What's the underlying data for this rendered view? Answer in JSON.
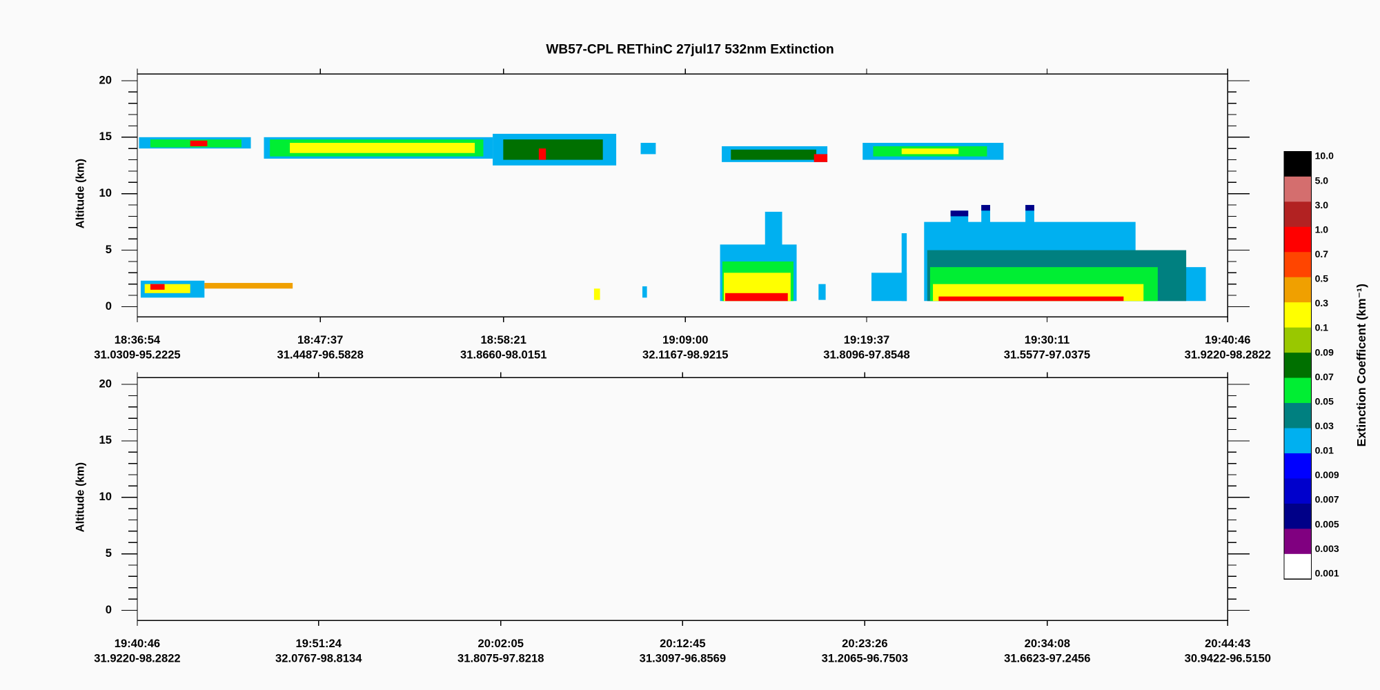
{
  "chart_data": {
    "type": "curtain",
    "title": "WB57-CPL  REThinC  27jul17  532nm Extinction",
    "ylabel": "Altitude (km)",
    "ylim": [
      -0.9,
      20.6
    ],
    "yticks": [
      0,
      5,
      10,
      15,
      20
    ],
    "yminorticks": [
      0,
      1,
      2,
      3,
      4,
      5,
      6,
      7,
      8,
      9,
      10,
      11,
      12,
      13,
      14,
      15,
      16,
      17,
      18,
      19,
      20
    ],
    "colorbar": {
      "title": "Extinction Coefficent (km⁻¹)",
      "levels": [
        {
          "value": 10,
          "label": "10.0"
        },
        {
          "value": 5,
          "label": "5.0"
        },
        {
          "value": 3,
          "label": "3.0"
        },
        {
          "value": 1,
          "label": "1.0"
        },
        0.7,
        0.5,
        0.3,
        0.1,
        0.09,
        0.07,
        0.05,
        0.03,
        0.01,
        0.009,
        0.007,
        0.005,
        0.003,
        0.001
      ],
      "colors": [
        "#000000",
        "#d46e6e",
        "#b22222",
        "#ff0000",
        "#ff4500",
        "#f0a000",
        "#ffff00",
        "#99c800",
        "#007000",
        "#00ee33",
        "#008080",
        "#00b0f0",
        "#0000ff",
        "#0000cc",
        "#000088",
        "#800080",
        "#ffffff"
      ]
    },
    "panels": [
      {
        "xlim": [
          67014,
          70846
        ],
        "xticks": [
          {
            "value": 67014,
            "label": "18:36:54"
          },
          {
            "value": 67657,
            "label": "18:47:37"
          },
          {
            "value": 68301,
            "label": "18:58:21"
          },
          {
            "value": 68940,
            "label": "19:09:00"
          },
          {
            "value": 69577,
            "label": "19:19:37"
          },
          {
            "value": 70211,
            "label": "19:30:11"
          },
          {
            "value": 70846,
            "label": "19:40:46"
          }
        ],
        "xlocations": [
          "31.0309-95.2225",
          "31.4487-96.5828",
          "31.8660-98.0151",
          "32.1167-98.9215",
          "31.8096-97.8548",
          "31.5577-97.0375",
          "31.9220-98.2822"
        ],
        "cells": [
          {
            "x": [
              67020,
              67413
            ],
            "y": [
              14.0,
              15.0
            ],
            "value": 0.03
          },
          {
            "x": [
              67060,
              67380
            ],
            "y": [
              14.1,
              14.8
            ],
            "value": 0.07
          },
          {
            "x": [
              67200,
              67260
            ],
            "y": [
              14.2,
              14.7
            ],
            "value": 1.0
          },
          {
            "x": [
              67459,
              68263
            ],
            "y": [
              13.1,
              15.0
            ],
            "value": 0.03
          },
          {
            "x": [
              67480,
              68230
            ],
            "y": [
              13.3,
              14.8
            ],
            "value": 0.07
          },
          {
            "x": [
              67550,
              68200
            ],
            "y": [
              13.6,
              14.5
            ],
            "value": 0.3
          },
          {
            "x": [
              68263,
              68697
            ],
            "y": [
              12.5,
              15.3
            ],
            "value": 0.03
          },
          {
            "x": [
              68300,
              68650
            ],
            "y": [
              13.0,
              14.8
            ],
            "value": 0.09
          },
          {
            "x": [
              68425,
              68450
            ],
            "y": [
              13.0,
              14.0
            ],
            "value": 1.0
          },
          {
            "x": [
              68783,
              68836
            ],
            "y": [
              13.5,
              14.5
            ],
            "value": 0.03
          },
          {
            "x": [
              69068,
              69439
            ],
            "y": [
              12.8,
              14.2
            ],
            "value": 0.03
          },
          {
            "x": [
              69100,
              69400
            ],
            "y": [
              13.0,
              13.9
            ],
            "value": 0.09
          },
          {
            "x": [
              69392,
              69439
            ],
            "y": [
              12.8,
              13.5
            ],
            "value": 1.0
          },
          {
            "x": [
              69563,
              70058
            ],
            "y": [
              13.0,
              14.5
            ],
            "value": 0.03
          },
          {
            "x": [
              69600,
              70000
            ],
            "y": [
              13.3,
              14.2
            ],
            "value": 0.07
          },
          {
            "x": [
              69700,
              69900
            ],
            "y": [
              13.5,
              14.0
            ],
            "value": 0.3
          },
          {
            "x": [
              67026,
              67250
            ],
            "y": [
              0.8,
              2.3
            ],
            "value": 0.03
          },
          {
            "x": [
              67040,
              67200
            ],
            "y": [
              1.2,
              2.0
            ],
            "value": 0.3
          },
          {
            "x": [
              67060,
              67110
            ],
            "y": [
              1.5,
              2.0
            ],
            "value": 1.0
          },
          {
            "x": [
              67250,
              67560
            ],
            "y": [
              1.6,
              2.1
            ],
            "value": 0.5
          },
          {
            "x": [
              68619,
              68640
            ],
            "y": [
              0.6,
              1.6
            ],
            "value": 0.3
          },
          {
            "x": [
              68789,
              68805
            ],
            "y": [
              0.8,
              1.8
            ],
            "value": 0.03
          },
          {
            "x": [
              69062,
              69331
            ],
            "y": [
              0.5,
              5.5
            ],
            "value": 0.03
          },
          {
            "x": [
              69220,
              69280
            ],
            "y": [
              0.5,
              8.4
            ],
            "value": 0.03
          },
          {
            "x": [
              69070,
              69320
            ],
            "y": [
              0.5,
              4.0
            ],
            "value": 0.07
          },
          {
            "x": [
              69075,
              69310
            ],
            "y": [
              0.5,
              3.0
            ],
            "value": 0.3
          },
          {
            "x": [
              69080,
              69300
            ],
            "y": [
              0.5,
              1.2
            ],
            "value": 1.0
          },
          {
            "x": [
              69408,
              69433
            ],
            "y": [
              0.6,
              2.0
            ],
            "value": 0.03
          },
          {
            "x": [
              69594,
              69718
            ],
            "y": [
              0.5,
              3.0
            ],
            "value": 0.03
          },
          {
            "x": [
              69700,
              69718
            ],
            "y": [
              0.5,
              6.5
            ],
            "value": 0.03
          },
          {
            "x": [
              69779,
              70522
            ],
            "y": [
              0.5,
              7.5
            ],
            "value": 0.03
          },
          {
            "x": [
              69872,
              69934
            ],
            "y": [
              0.5,
              8.5
            ],
            "value": 0.03
          },
          {
            "x": [
              69980,
              70011
            ],
            "y": [
              0.5,
              9.0
            ],
            "value": 0.03
          },
          {
            "x": [
              70135,
              70166
            ],
            "y": [
              0.5,
              9.0
            ],
            "value": 0.03
          },
          {
            "x": [
              69872,
              69934
            ],
            "y": [
              8.0,
              8.5
            ],
            "value": 0.007
          },
          {
            "x": [
              69980,
              70011
            ],
            "y": [
              8.5,
              9.0
            ],
            "value": 0.007
          },
          {
            "x": [
              70135,
              70166
            ],
            "y": [
              8.5,
              9.0
            ],
            "value": 0.007
          },
          {
            "x": [
              70522,
              70769
            ],
            "y": [
              0.5,
              3.5
            ],
            "value": 0.03
          },
          {
            "x": [
              69790,
              70700
            ],
            "y": [
              0.5,
              5.0
            ],
            "value": 0.05
          },
          {
            "x": [
              69800,
              70600
            ],
            "y": [
              0.5,
              3.5
            ],
            "value": 0.07
          },
          {
            "x": [
              69810,
              70550
            ],
            "y": [
              0.5,
              2.0
            ],
            "value": 0.3
          },
          {
            "x": [
              69830,
              70480
            ],
            "y": [
              0.5,
              0.9
            ],
            "value": 1.0
          }
        ]
      },
      {
        "xlim": [
          70846,
          74683
        ],
        "xticks": [
          {
            "value": 70846,
            "label": "19:40:46"
          },
          {
            "value": 71484,
            "label": "19:51:24"
          },
          {
            "value": 72125,
            "label": "20:02:05"
          },
          {
            "value": 72765,
            "label": "20:12:45"
          },
          {
            "value": 73406,
            "label": "20:23:26"
          },
          {
            "value": 74048,
            "label": "20:34:08"
          },
          {
            "value": 74683,
            "label": "20:44:43"
          }
        ],
        "xlocations": [
          "31.9220-98.2822",
          "32.0767-98.8134",
          "31.8075-97.8218",
          "31.3097-96.8569",
          "31.2065-96.7503",
          "31.6623-97.2456",
          "30.9422-96.5150"
        ],
        "cells": []
      }
    ]
  }
}
